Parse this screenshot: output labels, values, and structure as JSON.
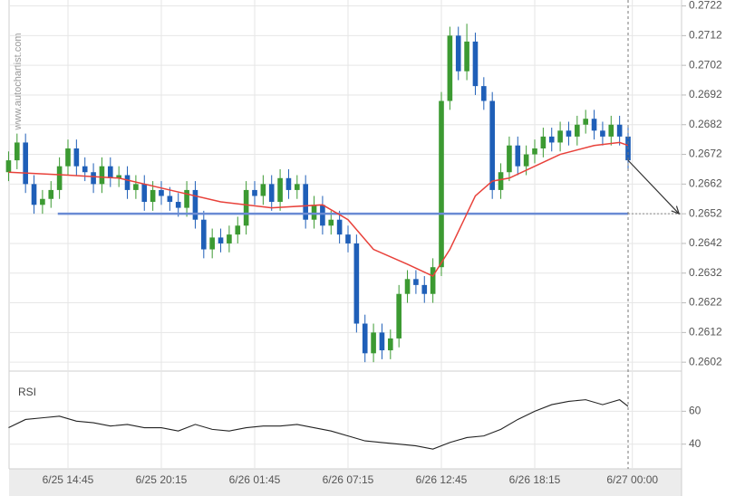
{
  "chart_data": [
    {
      "type": "candlestick",
      "watermark": "www.autochartist.com",
      "xlim": [
        -3.47,
        36.15
      ],
      "xticks": [
        {
          "value": 0,
          "label": "6/25 14:45"
        },
        {
          "value": 5.5,
          "label": "6/25 20:15"
        },
        {
          "value": 11,
          "label": "6/26 01:45"
        },
        {
          "value": 16.5,
          "label": "6/26 07:15"
        },
        {
          "value": 22,
          "label": "6/26 12:45"
        },
        {
          "value": 27.5,
          "label": "6/26 18:15"
        },
        {
          "value": 33.25,
          "label": "6/27 00:00"
        }
      ],
      "ylim": [
        0.2599,
        0.2724
      ],
      "yticks": [
        0.2602,
        0.2612,
        0.2622,
        0.2632,
        0.2642,
        0.2652,
        0.2662,
        0.2672,
        0.2682,
        0.2692,
        0.2702,
        0.2712,
        0.2722
      ],
      "grid": true,
      "up_color": "#3c9a32",
      "down_color": "#1f5fb8",
      "candles": {
        "x": [
          -3.5,
          -3,
          -2.5,
          -2,
          -1.5,
          -1,
          -0.5,
          0,
          0.5,
          1,
          1.5,
          2,
          2.5,
          3,
          3.5,
          4,
          4.5,
          5,
          5.5,
          6,
          6.5,
          7,
          7.5,
          8,
          8.5,
          9,
          9.5,
          10,
          10.5,
          11,
          11.5,
          12,
          12.5,
          13,
          13.5,
          14,
          14.5,
          15,
          15.5,
          16,
          16.5,
          17,
          17.5,
          18,
          18.5,
          19,
          19.5,
          20,
          20.5,
          21,
          21.5,
          22,
          22.5,
          23,
          23.5,
          24,
          24.5,
          25,
          25.5,
          26,
          26.5,
          27,
          27.5,
          28,
          28.5,
          29,
          29.5,
          30,
          30.5,
          31,
          31.5,
          32,
          32.5,
          33
        ],
        "open": [
          0.2666,
          0.267,
          0.2676,
          0.2662,
          0.2655,
          0.2657,
          0.266,
          0.2668,
          0.2674,
          0.2668,
          0.2666,
          0.2662,
          0.2668,
          0.2664,
          0.2665,
          0.266,
          0.2662,
          0.2656,
          0.266,
          0.2658,
          0.2656,
          0.2654,
          0.266,
          0.265,
          0.264,
          0.2644,
          0.2642,
          0.2645,
          0.2648,
          0.266,
          0.2658,
          0.2662,
          0.2656,
          0.2664,
          0.266,
          0.2662,
          0.265,
          0.2655,
          0.2648,
          0.265,
          0.2645,
          0.2642,
          0.2615,
          0.2605,
          0.2612,
          0.2606,
          0.261,
          0.2625,
          0.263,
          0.2628,
          0.2625,
          0.2634,
          0.269,
          0.2712,
          0.27,
          0.271,
          0.2695,
          0.269,
          0.266,
          0.2666,
          0.2675,
          0.2668,
          0.2672,
          0.2674,
          0.2678,
          0.2676,
          0.268,
          0.2678,
          0.2682,
          0.2684,
          0.268,
          0.2678,
          0.2682,
          0.2678
        ],
        "high": [
          0.2673,
          0.2679,
          0.2679,
          0.2665,
          0.266,
          0.2663,
          0.2671,
          0.2677,
          0.2677,
          0.2671,
          0.2669,
          0.2671,
          0.2671,
          0.2668,
          0.2668,
          0.2665,
          0.2665,
          0.2663,
          0.2663,
          0.2661,
          0.2659,
          0.2663,
          0.2663,
          0.2653,
          0.2647,
          0.2647,
          0.2648,
          0.2651,
          0.2663,
          0.2663,
          0.2665,
          0.2665,
          0.2667,
          0.2667,
          0.2665,
          0.2665,
          0.2658,
          0.2658,
          0.2653,
          0.2653,
          0.2648,
          0.2645,
          0.2618,
          0.2615,
          0.2615,
          0.2613,
          0.2628,
          0.2633,
          0.2633,
          0.2631,
          0.2637,
          0.2693,
          0.2715,
          0.2715,
          0.2716,
          0.2713,
          0.2698,
          0.2693,
          0.2669,
          0.2678,
          0.2678,
          0.2675,
          0.2677,
          0.2681,
          0.2681,
          0.2683,
          0.2683,
          0.2685,
          0.2687,
          0.2687,
          0.2683,
          0.2685,
          0.2685,
          0.2681
        ],
        "low": [
          0.2663,
          0.2667,
          0.2659,
          0.2652,
          0.2652,
          0.2654,
          0.2657,
          0.2665,
          0.2665,
          0.2663,
          0.2659,
          0.2659,
          0.2661,
          0.2661,
          0.2657,
          0.2657,
          0.2653,
          0.2653,
          0.2655,
          0.2653,
          0.2651,
          0.2651,
          0.2647,
          0.2637,
          0.2637,
          0.2639,
          0.2639,
          0.2642,
          0.2645,
          0.2655,
          0.2655,
          0.2653,
          0.2653,
          0.2657,
          0.2657,
          0.2647,
          0.2647,
          0.2645,
          0.2645,
          0.2642,
          0.2639,
          0.2612,
          0.2602,
          0.2602,
          0.2603,
          0.2603,
          0.2607,
          0.2622,
          0.2625,
          0.2622,
          0.2622,
          0.2631,
          0.2687,
          0.2697,
          0.2697,
          0.2692,
          0.2687,
          0.2657,
          0.2657,
          0.2663,
          0.2665,
          0.2665,
          0.2669,
          0.2671,
          0.2673,
          0.2673,
          0.2675,
          0.2675,
          0.2679,
          0.2677,
          0.2675,
          0.2675,
          0.2675,
          0.2667
        ],
        "close": [
          0.267,
          0.2676,
          0.2662,
          0.2655,
          0.2657,
          0.266,
          0.2668,
          0.2674,
          0.2668,
          0.2666,
          0.2662,
          0.2668,
          0.2664,
          0.2665,
          0.266,
          0.2662,
          0.2656,
          0.266,
          0.2658,
          0.2656,
          0.2654,
          0.266,
          0.265,
          0.264,
          0.2644,
          0.2642,
          0.2645,
          0.2648,
          0.266,
          0.2658,
          0.2662,
          0.2656,
          0.2664,
          0.266,
          0.2662,
          0.265,
          0.2655,
          0.2648,
          0.265,
          0.2645,
          0.2642,
          0.2615,
          0.2605,
          0.2612,
          0.2606,
          0.261,
          0.2625,
          0.263,
          0.2628,
          0.2625,
          0.2634,
          0.269,
          0.2712,
          0.27,
          0.271,
          0.2695,
          0.269,
          0.266,
          0.2666,
          0.2675,
          0.2668,
          0.2672,
          0.2674,
          0.2678,
          0.2676,
          0.268,
          0.2678,
          0.2682,
          0.2684,
          0.268,
          0.2678,
          0.2682,
          0.2678,
          0.267
        ]
      },
      "moving_average": {
        "color": "#e8413a",
        "x": [
          -3.5,
          0,
          3,
          6,
          9,
          12,
          15,
          16.5,
          18,
          20,
          21.5,
          22.5,
          24,
          25,
          26,
          27.5,
          29,
          31,
          32.5,
          33
        ],
        "values": [
          0.2666,
          0.2665,
          0.2664,
          0.266,
          0.2656,
          0.2654,
          0.2655,
          0.265,
          0.264,
          0.2635,
          0.2631,
          0.264,
          0.2658,
          0.2663,
          0.2664,
          0.2668,
          0.2672,
          0.2675,
          0.2676,
          0.2675
        ]
      },
      "level": {
        "value": 0.2652,
        "x_start": -0.6,
        "color": "#6a8bd4"
      },
      "forecast": {
        "x": [
          33,
          36
        ],
        "y": [
          0.267,
          0.2652
        ]
      }
    },
    {
      "type": "line",
      "title": "RSI",
      "xlim": [
        -3.47,
        36.15
      ],
      "ylim": [
        25,
        80
      ],
      "yticks": [
        40,
        60
      ],
      "series": [
        {
          "color": "#222222",
          "x": [
            -3.5,
            -2.5,
            -1.5,
            -0.5,
            0.5,
            1.5,
            2.5,
            3.5,
            4.5,
            5.5,
            6.5,
            7.5,
            8.5,
            9.5,
            10.5,
            11.5,
            12.5,
            13.5,
            14.5,
            15.5,
            16.5,
            17.5,
            18.5,
            19.5,
            20.5,
            21.5,
            22.5,
            23.5,
            24.5,
            25.5,
            26.5,
            27.5,
            28.5,
            29.5,
            30.5,
            31.5,
            32.5,
            33
          ],
          "values": [
            50,
            55,
            56,
            57,
            54,
            53,
            51,
            52,
            50,
            50,
            48,
            52,
            49,
            48,
            50,
            51,
            51,
            52,
            50,
            48,
            45,
            42,
            41,
            40,
            39,
            37,
            41,
            44,
            45,
            49,
            55,
            60,
            64,
            66,
            67,
            64,
            67,
            63
          ]
        }
      ]
    }
  ]
}
